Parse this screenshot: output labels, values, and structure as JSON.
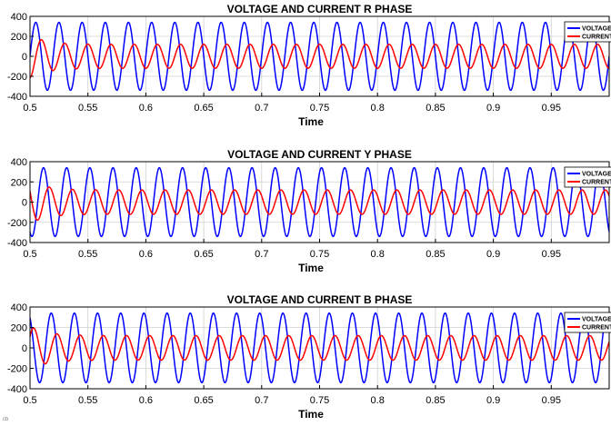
{
  "figure": {
    "corner_mark": "cb"
  },
  "chart_data": [
    {
      "type": "line",
      "title": "VOLTAGE AND CURRENT R PHASE",
      "xlabel": "Time",
      "ylabel": "",
      "xlim": [
        0.5,
        1.0
      ],
      "ylim": [
        -400,
        400
      ],
      "xticks": [
        "0.5",
        "0.55",
        "0.6",
        "0.65",
        "0.7",
        "0.75",
        "0.8",
        "0.85",
        "0.9",
        "0.95"
      ],
      "yticks": [
        "400",
        "200",
        "0",
        "-200",
        "-400"
      ],
      "grid": true,
      "legend_position": "top-right",
      "series": [
        {
          "name": "VOLTAGE",
          "color": "#0000ff",
          "shape": "sine",
          "frequency_hz": 50,
          "amplitude": 340,
          "phase_deg": 0
        },
        {
          "name": "CURRENT",
          "color": "#ff0000",
          "shape": "sine",
          "frequency_hz": 50,
          "amplitude": 120,
          "phase_deg": -90,
          "startup_peak": 215,
          "settles_by": 0.53
        }
      ]
    },
    {
      "type": "line",
      "title": "VOLTAGE AND CURRENT Y PHASE",
      "xlabel": "Time",
      "ylabel": "",
      "xlim": [
        0.5,
        1.0
      ],
      "ylim": [
        -400,
        400
      ],
      "xticks": [
        "0.5",
        "0.55",
        "0.6",
        "0.65",
        "0.7",
        "0.75",
        "0.8",
        "0.85",
        "0.9",
        "0.95"
      ],
      "yticks": [
        "400",
        "200",
        "0",
        "-200",
        "-400"
      ],
      "grid": true,
      "legend_position": "top-right",
      "series": [
        {
          "name": "VOLTAGE",
          "color": "#0000ff",
          "shape": "sine",
          "frequency_hz": 50,
          "amplitude": 340,
          "phase_deg": -120
        },
        {
          "name": "CURRENT",
          "color": "#ff0000",
          "shape": "sine",
          "frequency_hz": 50,
          "amplitude": 120,
          "phase_deg": -210,
          "startup_peak": 215,
          "settles_by": 0.53
        }
      ]
    },
    {
      "type": "line",
      "title": "VOLTAGE AND CURRENT B PHASE",
      "xlabel": "Time",
      "ylabel": "",
      "xlim": [
        0.5,
        1.0
      ],
      "ylim": [
        -400,
        400
      ],
      "xticks": [
        "0.5",
        "0.55",
        "0.6",
        "0.65",
        "0.7",
        "0.75",
        "0.8",
        "0.85",
        "0.9",
        "0.95"
      ],
      "yticks": [
        "400",
        "200",
        "0",
        "-200",
        "-400"
      ],
      "grid": true,
      "legend_position": "top-right",
      "series": [
        {
          "name": "VOLTAGE",
          "color": "#0000ff",
          "shape": "sine",
          "frequency_hz": 50,
          "amplitude": 340,
          "phase_deg": 120
        },
        {
          "name": "CURRENT",
          "color": "#ff0000",
          "shape": "sine",
          "frequency_hz": 50,
          "amplitude": 120,
          "phase_deg": 30,
          "startup_peak": 215,
          "settles_by": 0.53
        }
      ]
    }
  ]
}
